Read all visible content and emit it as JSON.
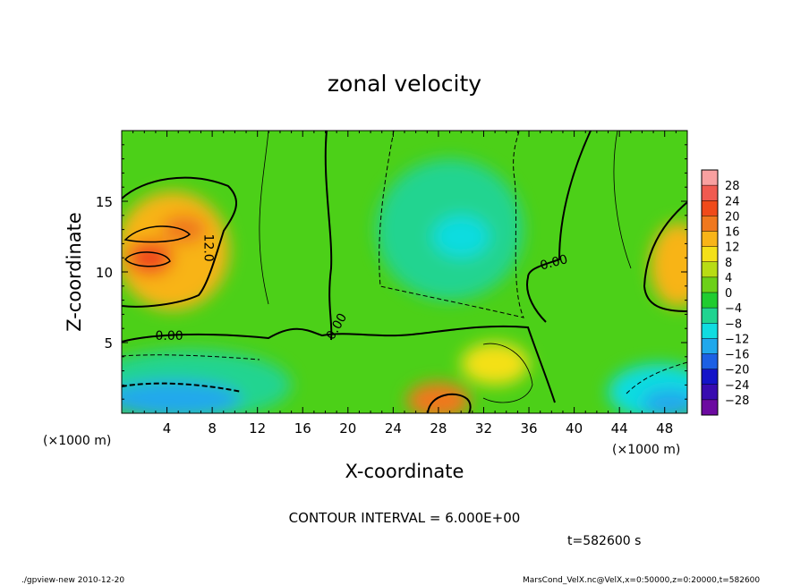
{
  "chart_data": {
    "type": "heatmap",
    "title": "zonal velocity",
    "xlabel": "X-coordinate",
    "ylabel": "Z-coordinate",
    "x_unit": "(×1000 m)",
    "z_unit": "(×1000 m)",
    "xlim": [
      0,
      50
    ],
    "ylim": [
      0,
      20
    ],
    "x_ticks": [
      4,
      8,
      12,
      16,
      20,
      24,
      28,
      32,
      36,
      40,
      44,
      48
    ],
    "y_ticks": [
      5,
      10,
      15
    ],
    "contour_interval_text": "CONTOUR INTERVAL = 6.000E+00",
    "contour_labels": [
      {
        "text": "12.0",
        "x": 7.3,
        "z": 11.7
      },
      {
        "text": "0.00",
        "x": 4.2,
        "z": 5.2
      },
      {
        "text": "0.00",
        "x": 19.3,
        "z": 6.0
      },
      {
        "text": "0.00",
        "x": 38.3,
        "z": 10.4
      }
    ],
    "time_text": "t=582600 s",
    "colorbar": {
      "labels": [
        "28",
        "24",
        "20",
        "16",
        "12",
        "8",
        "4",
        "0",
        "−4",
        "−8",
        "−12",
        "−16",
        "−20",
        "−24",
        "−28"
      ],
      "colors": [
        "#f8a0a0",
        "#f05a50",
        "#f04a1a",
        "#f0781e",
        "#f8b418",
        "#f4e018",
        "#b8dc14",
        "#6cd018",
        "#20cc30",
        "#20d490",
        "#10dce0",
        "#20a8ec",
        "#1c60e4",
        "#1414c8",
        "#380cb0",
        "#6c0aa0"
      ]
    },
    "field_blobs": [
      {
        "x": 4.5,
        "z": 11.5,
        "rx": 5.0,
        "ry": 4.2,
        "value": 14
      },
      {
        "x": 2.5,
        "z": 11.0,
        "rx": 2.0,
        "ry": 1.2,
        "value": 19
      },
      {
        "x": 5.5,
        "z": 13.0,
        "rx": 2.0,
        "ry": 1.0,
        "value": 18
      },
      {
        "x": 28.0,
        "z": 0.9,
        "rx": 2.8,
        "ry": 1.3,
        "value": 15
      },
      {
        "x": 49.2,
        "z": 10.5,
        "rx": 2.5,
        "ry": 3.0,
        "value": 14
      },
      {
        "x": 29.0,
        "z": 13.0,
        "rx": 6.5,
        "ry": 5.0,
        "value": -9
      },
      {
        "x": 30.0,
        "z": 12.5,
        "rx": 2.5,
        "ry": 1.5,
        "value": -11
      },
      {
        "x": 6.0,
        "z": 2.0,
        "rx": 9.0,
        "ry": 2.5,
        "value": -9
      },
      {
        "x": 4.5,
        "z": 1.0,
        "rx": 6.0,
        "ry": 1.3,
        "value": -14
      },
      {
        "x": 47.5,
        "z": 1.5,
        "rx": 4.5,
        "ry": 2.0,
        "value": -10
      },
      {
        "x": 48.5,
        "z": 0.7,
        "rx": 2.5,
        "ry": 1.0,
        "value": -15
      },
      {
        "x": 33.0,
        "z": 3.5,
        "rx": 3.0,
        "ry": 1.5,
        "value": 7
      }
    ],
    "footer_left": "./gpview-new  2010-12-20",
    "footer_right": "MarsCond_VelX.nc@VelX,x=0:50000,z=0:20000,t=582600"
  },
  "colors": {
    "axis": "#000000",
    "background_field": "#4cd018"
  }
}
